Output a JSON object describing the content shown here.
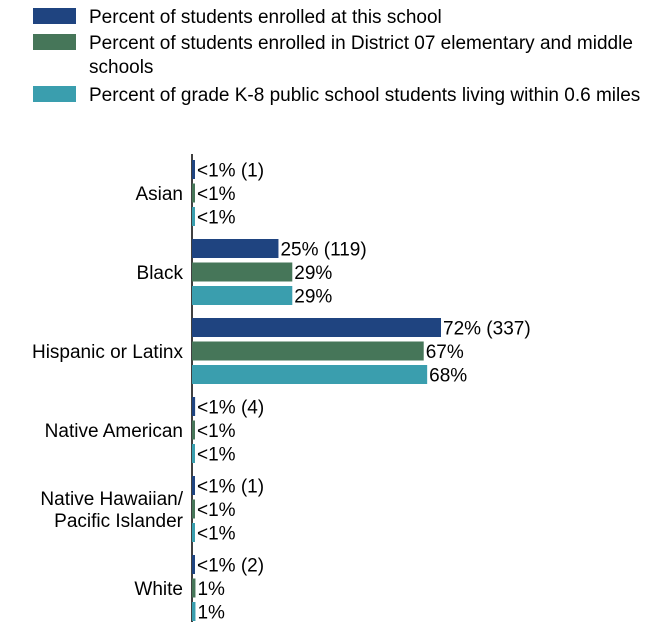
{
  "chart_data": {
    "type": "bar",
    "orientation": "horizontal",
    "categories": [
      [
        "Asian"
      ],
      [
        "Black"
      ],
      [
        "Hispanic or Latinx"
      ],
      [
        "Native American"
      ],
      [
        "Native Hawaiian/",
        "Pacific Islander"
      ],
      [
        "White"
      ]
    ],
    "series": [
      {
        "name": "Percent of students enrolled at this school",
        "color": "#1f4480",
        "values": [
          0.2,
          25,
          72,
          0.9,
          0.2,
          0.4
        ],
        "labels": [
          "<1% (1)",
          "25% (119)",
          "72% (337)",
          "<1% (4)",
          "<1% (1)",
          "<1% (2)"
        ]
      },
      {
        "name": "Percent of students enrolled in District 07 elementary and middle schools",
        "color": "#467659",
        "values": [
          0.3,
          29,
          67,
          0.5,
          0.2,
          1
        ],
        "labels": [
          "<1%",
          "29%",
          "67%",
          "<1%",
          "<1%",
          "1%"
        ]
      },
      {
        "name": "Percent of grade K-8 public school students living within 0.6 miles",
        "color": "#3a9eae",
        "values": [
          0.3,
          29,
          68,
          0.5,
          0.2,
          1
        ],
        "labels": [
          "<1%",
          "29%",
          "68%",
          "<1%",
          "<1%",
          "1%"
        ]
      }
    ],
    "xlim": [
      0,
      100
    ],
    "grid": false,
    "legend": "top"
  }
}
